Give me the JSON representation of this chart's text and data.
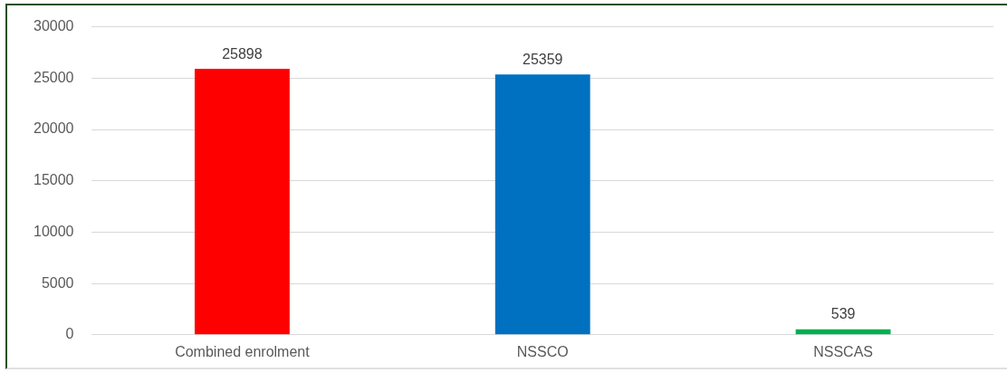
{
  "chart_data": {
    "type": "bar",
    "categories": [
      "Combined enrolment",
      "NSSCO",
      "NSSCAS"
    ],
    "values": [
      25898,
      25359,
      539
    ],
    "colors": [
      "#ff0000",
      "#0070c0",
      "#00b050"
    ],
    "ylim": [
      0,
      30000
    ],
    "yticks": [
      0,
      5000,
      10000,
      15000,
      20000,
      25000,
      30000
    ],
    "grid": "y",
    "data_labels": true
  }
}
